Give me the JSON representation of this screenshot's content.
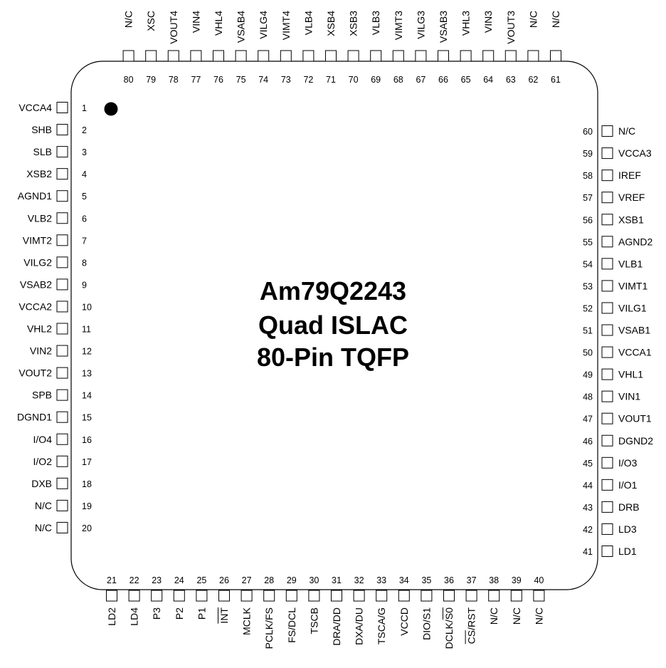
{
  "package": {
    "title_lines": [
      "Am79Q2243",
      "Quad ISLAC",
      "80-Pin TQFP"
    ]
  },
  "pins": {
    "left": [
      {
        "num": "1",
        "name": "VCCA4"
      },
      {
        "num": "2",
        "name": "SHB"
      },
      {
        "num": "3",
        "name": "SLB"
      },
      {
        "num": "4",
        "name": "XSB2"
      },
      {
        "num": "5",
        "name": "AGND1"
      },
      {
        "num": "6",
        "name": "VLB2"
      },
      {
        "num": "7",
        "name": "VIMT2"
      },
      {
        "num": "8",
        "name": "VILG2"
      },
      {
        "num": "9",
        "name": "VSAB2"
      },
      {
        "num": "10",
        "name": "VCCA2"
      },
      {
        "num": "11",
        "name": "VHL2"
      },
      {
        "num": "12",
        "name": "VIN2"
      },
      {
        "num": "13",
        "name": "VOUT2"
      },
      {
        "num": "14",
        "name": "SPB"
      },
      {
        "num": "15",
        "name": "DGND1"
      },
      {
        "num": "16",
        "name": "I/O4"
      },
      {
        "num": "17",
        "name": "I/O2"
      },
      {
        "num": "18",
        "name": "DXB"
      },
      {
        "num": "19",
        "name": "N/C"
      },
      {
        "num": "20",
        "name": "N/C"
      }
    ],
    "bottom": [
      {
        "num": "21",
        "name": "LD2"
      },
      {
        "num": "22",
        "name": "LD4"
      },
      {
        "num": "23",
        "name": "P3"
      },
      {
        "num": "24",
        "name": "P2"
      },
      {
        "num": "25",
        "name": "P1"
      },
      {
        "num": "26",
        "name": "INT"
      },
      {
        "num": "27",
        "name": "MCLK"
      },
      {
        "num": "28",
        "name": "PCLK/FS"
      },
      {
        "num": "29",
        "name": "FS/DCL"
      },
      {
        "num": "30",
        "name": "TSCB"
      },
      {
        "num": "31",
        "name": "DRA/DD"
      },
      {
        "num": "32",
        "name": "DXA/DU"
      },
      {
        "num": "33",
        "name": "TSCA/G"
      },
      {
        "num": "34",
        "name": "VCCD"
      },
      {
        "num": "35",
        "name": "DIO/S1"
      },
      {
        "num": "36",
        "name": "DCLK/S0"
      },
      {
        "num": "37",
        "name": "CS/RST"
      },
      {
        "num": "38",
        "name": "N/C"
      },
      {
        "num": "39",
        "name": "N/C"
      },
      {
        "num": "40",
        "name": "N/C"
      }
    ],
    "right": [
      {
        "num": "41",
        "name": "LD1"
      },
      {
        "num": "42",
        "name": "LD3"
      },
      {
        "num": "43",
        "name": "DRB"
      },
      {
        "num": "44",
        "name": "I/O1"
      },
      {
        "num": "45",
        "name": "I/O3"
      },
      {
        "num": "46",
        "name": "DGND2"
      },
      {
        "num": "47",
        "name": "VOUT1"
      },
      {
        "num": "48",
        "name": "VIN1"
      },
      {
        "num": "49",
        "name": "VHL1"
      },
      {
        "num": "50",
        "name": "VCCA1"
      },
      {
        "num": "51",
        "name": "VSAB1"
      },
      {
        "num": "52",
        "name": "VILG1"
      },
      {
        "num": "53",
        "name": "VIMT1"
      },
      {
        "num": "54",
        "name": "VLB1"
      },
      {
        "num": "55",
        "name": "AGND2"
      },
      {
        "num": "56",
        "name": "XSB1"
      },
      {
        "num": "57",
        "name": "VREF"
      },
      {
        "num": "58",
        "name": "IREF"
      },
      {
        "num": "59",
        "name": "VCCA3"
      },
      {
        "num": "60",
        "name": "N/C"
      }
    ],
    "top": [
      {
        "num": "61",
        "name": "N/C"
      },
      {
        "num": "62",
        "name": "N/C"
      },
      {
        "num": "63",
        "name": "VOUT3"
      },
      {
        "num": "64",
        "name": "VIN3"
      },
      {
        "num": "65",
        "name": "VHL3"
      },
      {
        "num": "66",
        "name": "VSAB3"
      },
      {
        "num": "67",
        "name": "VILG3"
      },
      {
        "num": "68",
        "name": "VIMT3"
      },
      {
        "num": "69",
        "name": "VLB3"
      },
      {
        "num": "70",
        "name": "XSB3"
      },
      {
        "num": "71",
        "name": "XSB4"
      },
      {
        "num": "72",
        "name": "VLB4"
      },
      {
        "num": "73",
        "name": "VIMT4"
      },
      {
        "num": "74",
        "name": "VILG4"
      },
      {
        "num": "75",
        "name": "VSAB4"
      },
      {
        "num": "76",
        "name": "VHL4"
      },
      {
        "num": "77",
        "name": "VIN4"
      },
      {
        "num": "78",
        "name": "VOUT4"
      },
      {
        "num": "79",
        "name": "XSC"
      },
      {
        "num": "80",
        "name": "N/C"
      }
    ],
    "active_low_pins": [
      "26",
      "36",
      "37"
    ]
  },
  "pin1_marker": "filled-circle-icon"
}
